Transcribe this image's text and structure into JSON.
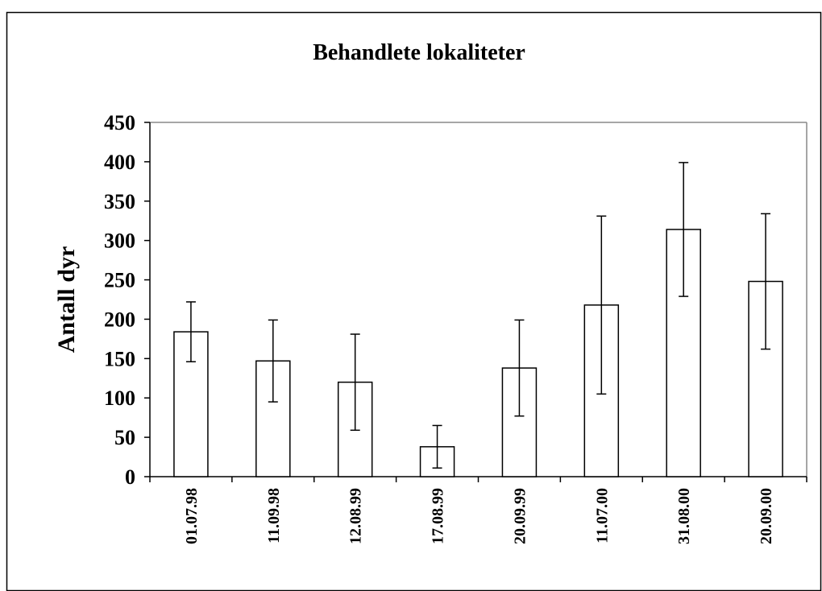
{
  "chart_data": {
    "type": "bar",
    "title": "Behandlete lokaliteter",
    "y_label": "Antall dyr",
    "categories": [
      "01.07.98",
      "11.09.98",
      "12.08.99",
      "17.08.99",
      "20.09.99",
      "11.07.00",
      "31.08.00",
      "20.09.00"
    ],
    "values": [
      184,
      147,
      120,
      38,
      138,
      218,
      314,
      248
    ],
    "errors": [
      38,
      52,
      61,
      27,
      61,
      113,
      85,
      86
    ],
    "color": "#ffffff",
    "ylim": [
      0,
      450
    ],
    "yticks": [
      0,
      50,
      100,
      150,
      200,
      250,
      300,
      350,
      400,
      450
    ],
    "grid": false
  }
}
